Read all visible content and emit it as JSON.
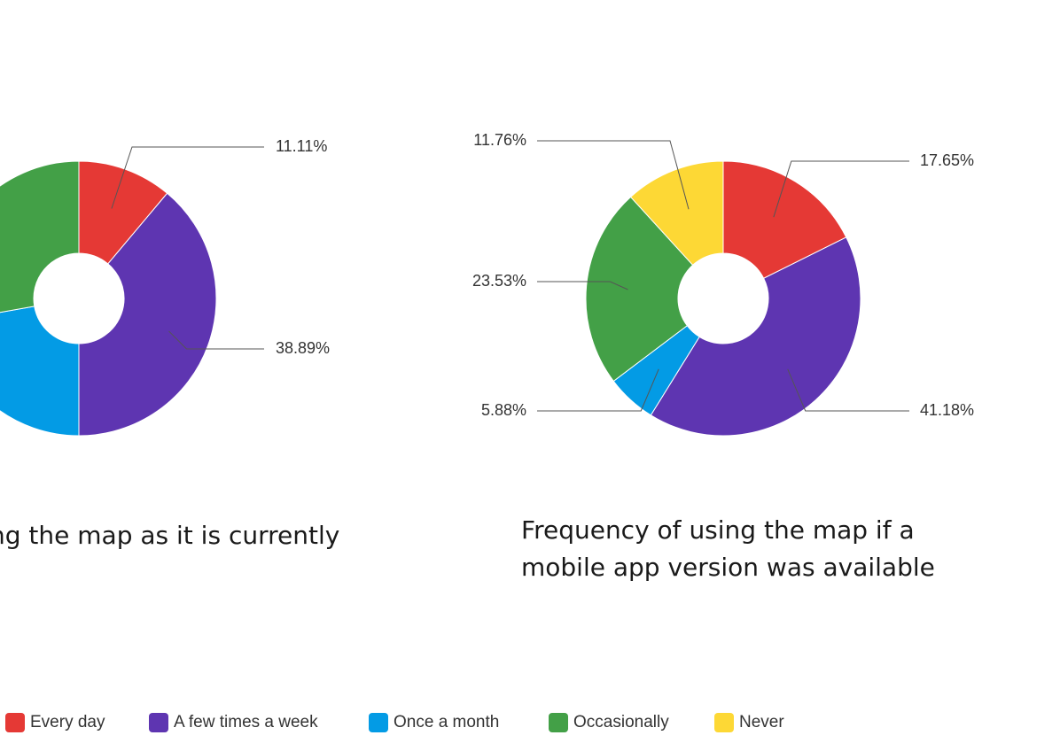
{
  "colors": {
    "every_day": "#E53935",
    "few_times_week": "#5E35B1",
    "once_month": "#039BE5",
    "occasionally": "#43A047",
    "never": "#FDD835"
  },
  "legend": [
    {
      "label": "Every day",
      "color": "#E53935"
    },
    {
      "label": "A few times a week",
      "color": "#5E35B1"
    },
    {
      "label": "Once a month",
      "color": "#039BE5"
    },
    {
      "label": "Occasionally",
      "color": "#43A047"
    },
    {
      "label": "Never",
      "color": "#FDD835"
    }
  ],
  "chart_data": [
    {
      "type": "pie",
      "donut": true,
      "title": "ng the map as it is currently",
      "categories": [
        "Every day",
        "A few times a week",
        "Once a month",
        "Occasionally",
        "Never"
      ],
      "values": [
        11.11,
        38.89,
        22.22,
        27.78,
        0
      ],
      "labels": [
        "11.11%",
        "38.89%",
        "",
        "",
        ""
      ],
      "colors": [
        "#E53935",
        "#5E35B1",
        "#039BE5",
        "#43A047",
        "#FDD835"
      ]
    },
    {
      "type": "pie",
      "donut": true,
      "title": "Frequency of using the map if a mobile app version was available",
      "title_lines": [
        "Frequency of using the map if a",
        "mobile app version was available"
      ],
      "categories": [
        "Every day",
        "A few times a week",
        "Once a month",
        "Occasionally",
        "Never"
      ],
      "values": [
        17.65,
        41.18,
        5.88,
        23.53,
        11.76
      ],
      "labels": [
        "17.65%",
        "41.18%",
        "5.88%",
        "23.53%",
        "11.76%"
      ],
      "colors": [
        "#E53935",
        "#5E35B1",
        "#039BE5",
        "#43A047",
        "#FDD835"
      ]
    }
  ]
}
